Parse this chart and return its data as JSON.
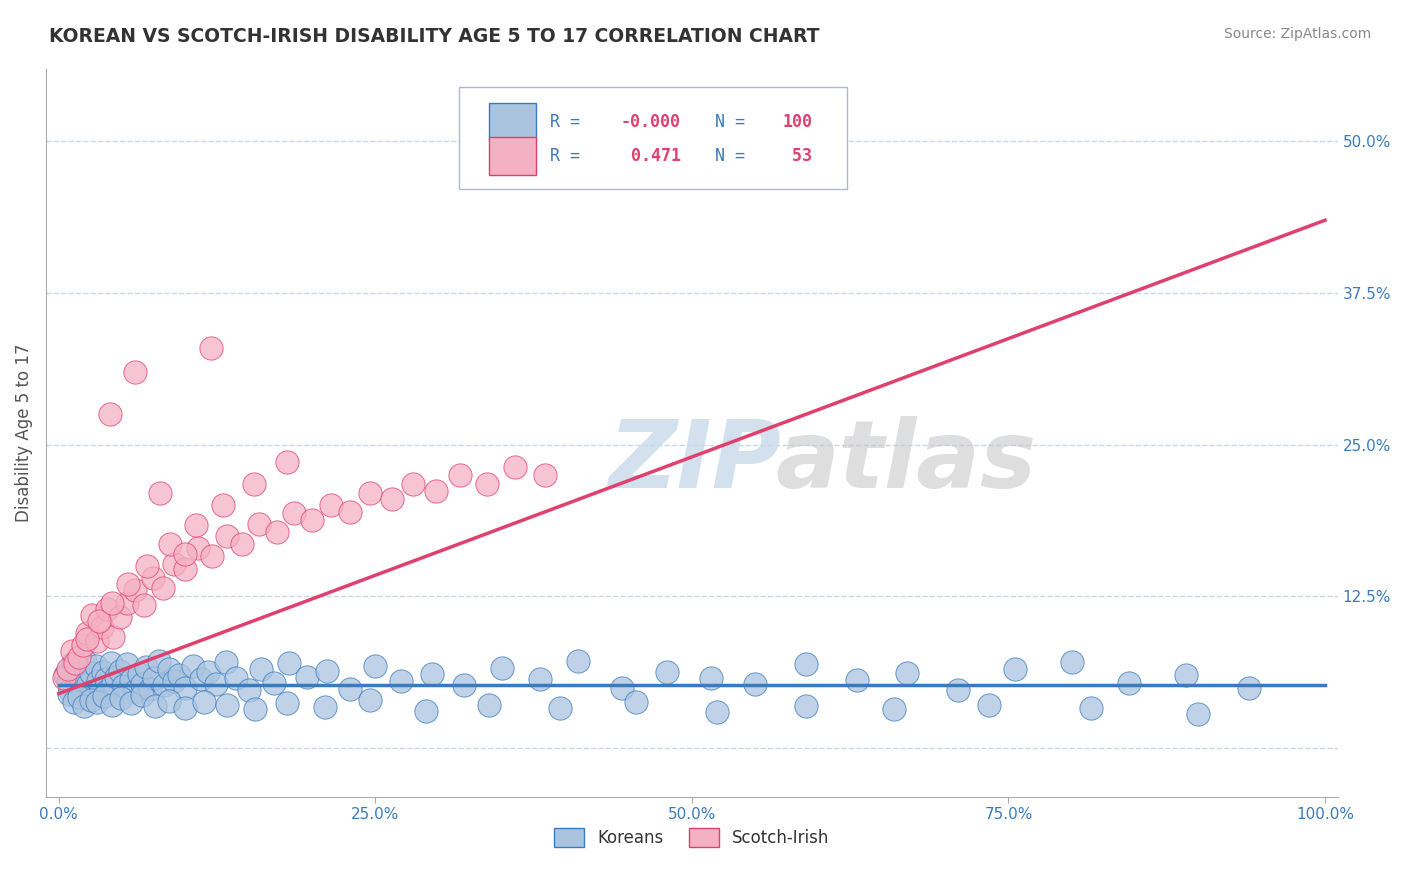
{
  "title": "KOREAN VS SCOTCH-IRISH DISABILITY AGE 5 TO 17 CORRELATION CHART",
  "source": "Source: ZipAtlas.com",
  "ylabel": "Disability Age 5 to 17",
  "xlabel": "",
  "xlim": [
    -0.01,
    1.01
  ],
  "ylim": [
    -0.04,
    0.56
  ],
  "xticks": [
    0.0,
    0.25,
    0.5,
    0.75,
    1.0
  ],
  "xticklabels": [
    "0.0%",
    "25.0%",
    "50.0%",
    "75.0%",
    "100.0%"
  ],
  "yticks": [
    0.0,
    0.125,
    0.25,
    0.375,
    0.5
  ],
  "korean_R": "-0.000",
  "korean_N": "100",
  "scotch_R": "0.471",
  "scotch_N": "53",
  "korean_color": "#aac4e0",
  "scotch_color": "#f4b0c4",
  "korean_line_color": "#3a7bbf",
  "scotch_line_color": "#e0406e",
  "background_color": "#ffffff",
  "grid_color": "#c8d8e8",
  "title_color": "#333333",
  "legend_text_color": "#3a7bbf",
  "axis_text_color": "#3a7bbf",
  "korean_line_y0": 0.052,
  "korean_line_y1": 0.052,
  "scotch_line_y0": 0.045,
  "scotch_line_y1": 0.435,
  "korean_scatter_x": [
    0.005,
    0.007,
    0.009,
    0.011,
    0.013,
    0.015,
    0.017,
    0.019,
    0.021,
    0.023,
    0.025,
    0.027,
    0.029,
    0.031,
    0.033,
    0.035,
    0.037,
    0.039,
    0.041,
    0.043,
    0.045,
    0.048,
    0.051,
    0.054,
    0.057,
    0.06,
    0.063,
    0.066,
    0.069,
    0.072,
    0.075,
    0.079,
    0.083,
    0.087,
    0.091,
    0.095,
    0.1,
    0.106,
    0.112,
    0.118,
    0.124,
    0.132,
    0.14,
    0.15,
    0.16,
    0.17,
    0.182,
    0.196,
    0.212,
    0.23,
    0.25,
    0.27,
    0.295,
    0.32,
    0.35,
    0.38,
    0.41,
    0.445,
    0.48,
    0.515,
    0.55,
    0.59,
    0.63,
    0.67,
    0.71,
    0.755,
    0.8,
    0.845,
    0.89,
    0.94,
    0.008,
    0.012,
    0.016,
    0.02,
    0.025,
    0.03,
    0.036,
    0.042,
    0.049,
    0.057,
    0.066,
    0.076,
    0.087,
    0.1,
    0.115,
    0.133,
    0.155,
    0.18,
    0.21,
    0.246,
    0.29,
    0.34,
    0.396,
    0.456,
    0.52,
    0.59,
    0.66,
    0.735,
    0.815,
    0.9
  ],
  "korean_scatter_y": [
    0.06,
    0.055,
    0.048,
    0.07,
    0.05,
    0.065,
    0.058,
    0.045,
    0.072,
    0.053,
    0.062,
    0.047,
    0.068,
    0.055,
    0.05,
    0.063,
    0.057,
    0.048,
    0.07,
    0.054,
    0.059,
    0.064,
    0.051,
    0.069,
    0.056,
    0.047,
    0.061,
    0.053,
    0.067,
    0.049,
    0.058,
    0.072,
    0.052,
    0.065,
    0.055,
    0.06,
    0.05,
    0.068,
    0.057,
    0.063,
    0.053,
    0.071,
    0.058,
    0.048,
    0.065,
    0.054,
    0.07,
    0.059,
    0.064,
    0.049,
    0.068,
    0.055,
    0.061,
    0.052,
    0.066,
    0.057,
    0.072,
    0.05,
    0.063,
    0.058,
    0.053,
    0.069,
    0.056,
    0.062,
    0.048,
    0.065,
    0.071,
    0.054,
    0.06,
    0.05,
    0.045,
    0.038,
    0.042,
    0.035,
    0.04,
    0.038,
    0.043,
    0.036,
    0.041,
    0.037,
    0.044,
    0.035,
    0.039,
    0.033,
    0.038,
    0.036,
    0.032,
    0.037,
    0.034,
    0.04,
    0.031,
    0.036,
    0.033,
    0.038,
    0.03,
    0.035,
    0.032,
    0.036,
    0.033,
    0.028
  ],
  "scotch_scatter_x": [
    0.004,
    0.007,
    0.01,
    0.013,
    0.016,
    0.019,
    0.022,
    0.026,
    0.03,
    0.034,
    0.038,
    0.043,
    0.048,
    0.054,
    0.06,
    0.067,
    0.074,
    0.082,
    0.091,
    0.1,
    0.11,
    0.121,
    0.133,
    0.145,
    0.158,
    0.172,
    0.186,
    0.2,
    0.215,
    0.23,
    0.246,
    0.263,
    0.28,
    0.298,
    0.317,
    0.338,
    0.36,
    0.384,
    0.022,
    0.032,
    0.042,
    0.055,
    0.07,
    0.088,
    0.108,
    0.13,
    0.154,
    0.18,
    0.04,
    0.06,
    0.08,
    0.1,
    0.12
  ],
  "scotch_scatter_y": [
    0.058,
    0.065,
    0.08,
    0.07,
    0.075,
    0.085,
    0.095,
    0.11,
    0.088,
    0.1,
    0.115,
    0.092,
    0.108,
    0.12,
    0.13,
    0.118,
    0.14,
    0.132,
    0.152,
    0.148,
    0.165,
    0.158,
    0.175,
    0.168,
    0.185,
    0.178,
    0.194,
    0.188,
    0.2,
    0.195,
    0.21,
    0.205,
    0.218,
    0.212,
    0.225,
    0.218,
    0.232,
    0.225,
    0.09,
    0.105,
    0.12,
    0.135,
    0.15,
    0.168,
    0.184,
    0.2,
    0.218,
    0.236,
    0.275,
    0.31,
    0.21,
    0.16,
    0.33
  ]
}
